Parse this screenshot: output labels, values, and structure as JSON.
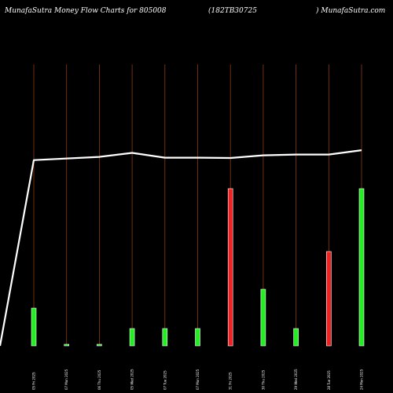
{
  "header": {
    "left": "MunafaSutra  Money Flow  Charts for 805008",
    "middle": "(182TB30725",
    "right": ") MunafaSutra.com"
  },
  "colors": {
    "background": "#000000",
    "gridline": "#8b3a0f",
    "up": "#22ee22",
    "down": "#ee2222",
    "line": "#ffffff"
  },
  "chart_data": {
    "type": "bar",
    "grid": true,
    "categories": [
      "05 Fri 2025",
      "07 Mon 2025",
      "06 Thu 2025",
      "05 Wed 2025",
      "07 Tue 2025",
      "07 Mon 2025",
      "31 Fri 2025",
      "30 Thu 2025",
      "29 Wed 2025",
      "28 Tue 2025",
      "24 Mon 2025"
    ],
    "bar_values": [
      24,
      1,
      1,
      11,
      11,
      11,
      100,
      36,
      11,
      60,
      100
    ],
    "bar_colors": [
      "up",
      "up",
      "up",
      "up",
      "up",
      "up",
      "down",
      "up",
      "up",
      "down",
      "up"
    ],
    "line_values": [
      69.5,
      70.7,
      72.2,
      70.4,
      70.4,
      70.3,
      71.3,
      71.6,
      71.6,
      73.2
    ],
    "line_start_value": 0,
    "ylim": [
      0,
      100
    ]
  }
}
